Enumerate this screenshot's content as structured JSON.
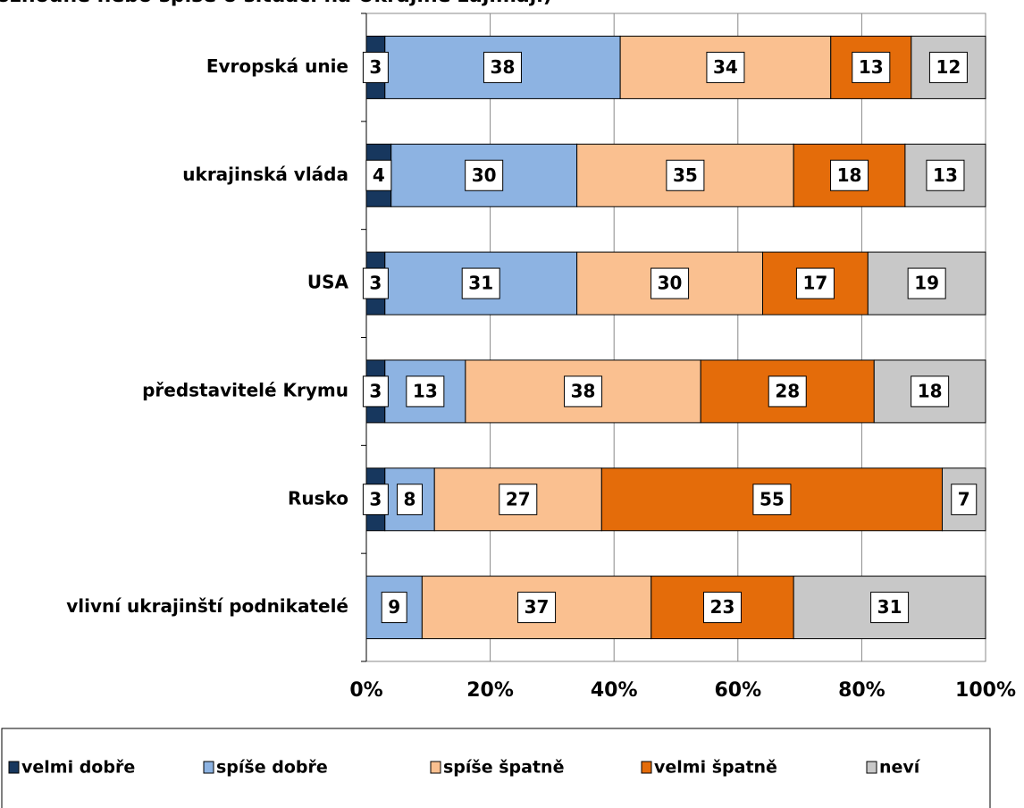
{
  "chart_data": {
    "type": "bar",
    "orientation": "horizontal",
    "stacked": true,
    "title": "ozhodně nebo spíše o situaci na Ukrajině zajímají)",
    "categories": [
      "Evropská unie",
      "ukrajinská vláda",
      "USA",
      "představitelé Krymu",
      "Rusko",
      "vlivní ukrajinští podnikatelé"
    ],
    "series": [
      {
        "name": "velmi dobře",
        "color": "#17375e",
        "values": [
          3,
          4,
          3,
          3,
          3,
          null
        ]
      },
      {
        "name": "spíše dobře",
        "color": "#8db3e2",
        "values": [
          38,
          30,
          31,
          13,
          8,
          9
        ]
      },
      {
        "name": "spíše špatně",
        "color": "#fac090",
        "values": [
          34,
          35,
          30,
          38,
          27,
          37
        ]
      },
      {
        "name": "velmi špatně",
        "color": "#e46c0a",
        "values": [
          13,
          18,
          17,
          28,
          55,
          23
        ]
      },
      {
        "name": "neví",
        "color": "#c8c8c8",
        "values": [
          12,
          13,
          19,
          18,
          7,
          31
        ]
      }
    ],
    "xlim": [
      0,
      100
    ],
    "xticks": [
      {
        "value": 0,
        "label": "0%"
      },
      {
        "value": 20,
        "label": "20%"
      },
      {
        "value": 40,
        "label": "40%"
      },
      {
        "value": 60,
        "label": "60%"
      },
      {
        "value": 80,
        "label": "80%"
      },
      {
        "value": 100,
        "label": "100%"
      }
    ],
    "grid": true,
    "legend": "bottom"
  }
}
